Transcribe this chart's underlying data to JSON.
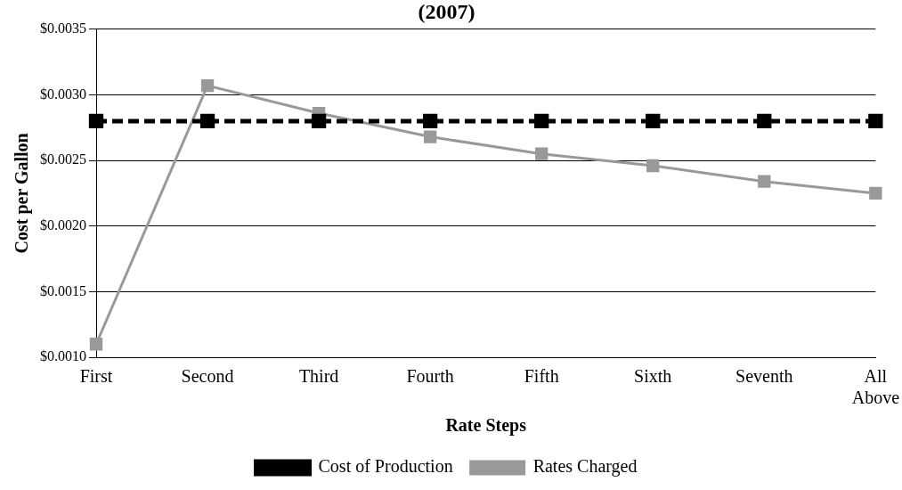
{
  "chart_data": {
    "type": "line",
    "title": "(2007)",
    "xlabel": "Rate Steps",
    "ylabel": "Cost per Gallon",
    "categories": [
      "First",
      "Second",
      "Third",
      "Fourth",
      "Fifth",
      "Sixth",
      "Seventh",
      "All Above"
    ],
    "series": [
      {
        "name": "Cost of Production",
        "color": "#000000",
        "line_style": "dashed",
        "values": [
          0.0028,
          0.0028,
          0.0028,
          0.0028,
          0.0028,
          0.0028,
          0.0028,
          0.0028
        ]
      },
      {
        "name": "Rates Charged",
        "color": "#999999",
        "line_style": "solid",
        "values": [
          0.0011,
          0.00307,
          0.00286,
          0.00268,
          0.00255,
          0.00246,
          0.00234,
          0.00225
        ]
      }
    ],
    "ylim": [
      0.001,
      0.0035
    ],
    "yticks": [
      {
        "value": 0.001,
        "label": "$0.0010"
      },
      {
        "value": 0.0015,
        "label": "$0.0015"
      },
      {
        "value": 0.002,
        "label": "$0.0020"
      },
      {
        "value": 0.0025,
        "label": "$0.0025"
      },
      {
        "value": 0.003,
        "label": "$0.0030"
      },
      {
        "value": 0.0035,
        "label": "$0.0035"
      }
    ],
    "grid": "y",
    "legend": "bottom",
    "marker": "square"
  }
}
